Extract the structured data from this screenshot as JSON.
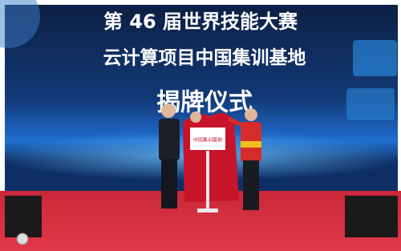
{
  "screen": {
    "title_lines": [
      "第 46 届世界技能大赛",
      "云计算项目中国集训基地",
      "揭牌仪式"
    ],
    "plaque": "中国集训基地"
  }
}
